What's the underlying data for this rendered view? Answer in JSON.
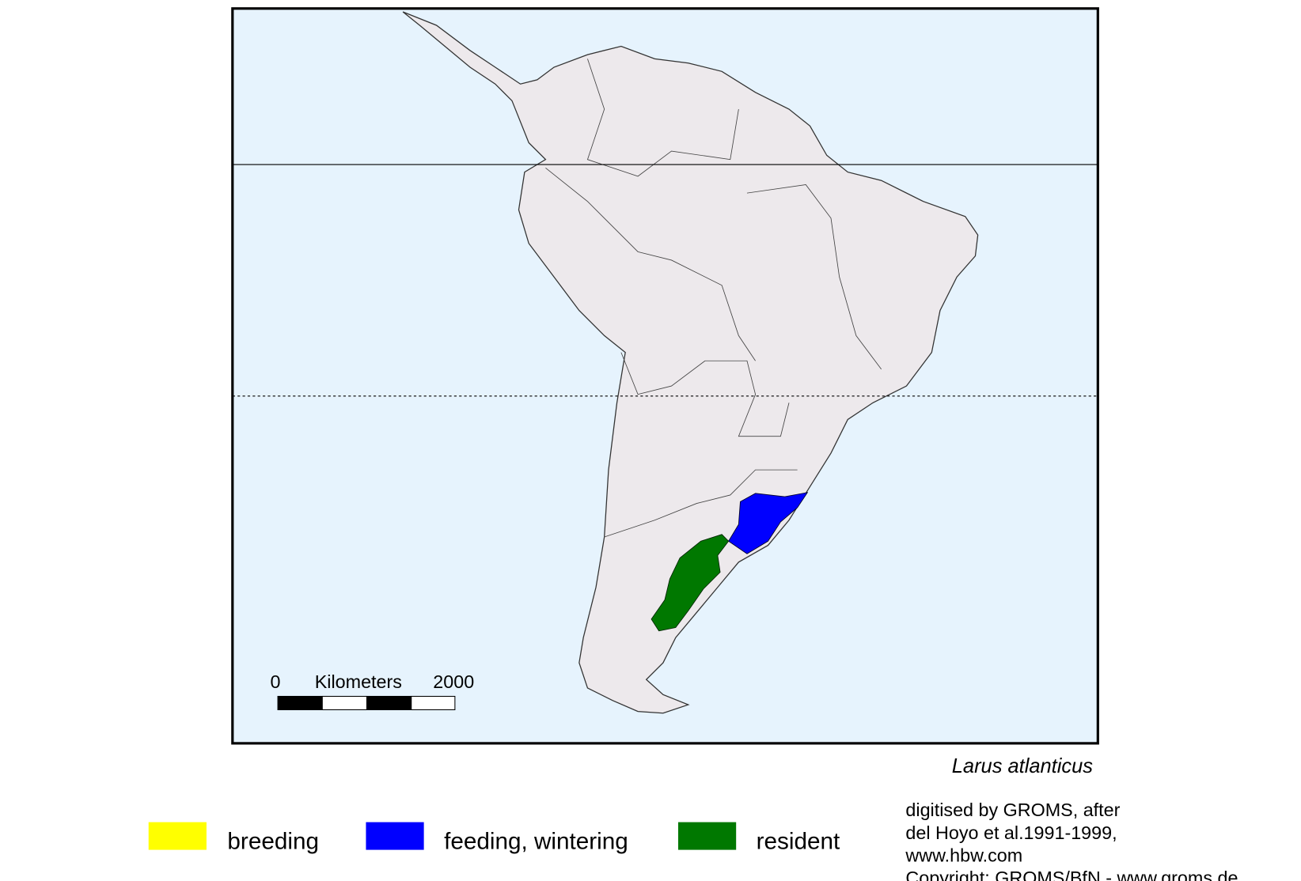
{
  "map": {
    "species": "Larus atlanticus",
    "scale": {
      "start": "0",
      "unit": "Kilometers",
      "end": "2000"
    },
    "legend": [
      {
        "label": "breeding",
        "color": "#ffff00"
      },
      {
        "label": "feeding, wintering",
        "color": "#0000ff"
      },
      {
        "label": "resident",
        "color": "#007800"
      }
    ],
    "credits": [
      "digitised by GROMS, after",
      "del Hoyo et al.1991-1999,",
      "www.hbw.com",
      "Copyright: GROMS/BfN - www.groms.de"
    ]
  }
}
